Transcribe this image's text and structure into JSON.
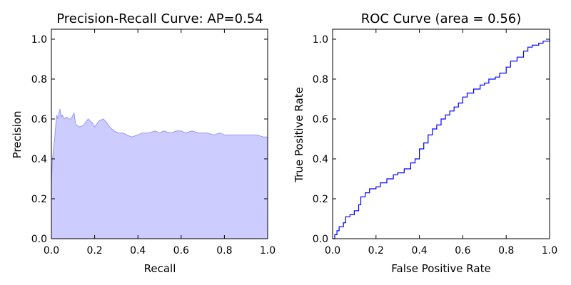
{
  "chart_data": [
    {
      "type": "area",
      "title": "Precision-Recall Curve: AP=0.54",
      "xlabel": "Recall",
      "ylabel": "Precision",
      "xlim": [
        0.0,
        1.0
      ],
      "ylim": [
        0.0,
        1.05
      ],
      "xticks": [
        "0.0",
        "0.2",
        "0.4",
        "0.6",
        "0.8",
        "1.0"
      ],
      "yticks": [
        "0.0",
        "0.2",
        "0.4",
        "0.6",
        "0.8",
        "1.0"
      ],
      "grid": false,
      "fill_color": "#ccccff",
      "line_color": "#9999ee",
      "x": [
        0.0,
        0.0,
        0.005,
        0.01,
        0.015,
        0.02,
        0.025,
        0.03,
        0.035,
        0.04,
        0.045,
        0.05,
        0.06,
        0.07,
        0.08,
        0.09,
        0.1,
        0.105,
        0.11,
        0.115,
        0.13,
        0.15,
        0.17,
        0.19,
        0.2,
        0.22,
        0.24,
        0.25,
        0.27,
        0.29,
        0.31,
        0.33,
        0.35,
        0.37,
        0.4,
        0.42,
        0.45,
        0.48,
        0.5,
        0.52,
        0.55,
        0.58,
        0.6,
        0.62,
        0.65,
        0.68,
        0.7,
        0.72,
        0.75,
        0.78,
        0.8,
        0.82,
        0.85,
        0.88,
        0.9,
        0.92,
        0.95,
        0.98,
        1.0
      ],
      "y": [
        1.0,
        0.27,
        0.4,
        0.45,
        0.5,
        0.57,
        0.62,
        0.6,
        0.63,
        0.65,
        0.61,
        0.62,
        0.6,
        0.61,
        0.6,
        0.6,
        0.62,
        0.63,
        0.59,
        0.57,
        0.56,
        0.57,
        0.6,
        0.58,
        0.56,
        0.59,
        0.6,
        0.59,
        0.56,
        0.54,
        0.53,
        0.53,
        0.52,
        0.51,
        0.52,
        0.53,
        0.53,
        0.54,
        0.53,
        0.54,
        0.53,
        0.54,
        0.54,
        0.53,
        0.54,
        0.53,
        0.53,
        0.53,
        0.52,
        0.53,
        0.52,
        0.52,
        0.52,
        0.52,
        0.52,
        0.52,
        0.52,
        0.51,
        0.51
      ]
    },
    {
      "type": "line",
      "title": "ROC Curve (area = 0.56)",
      "xlabel": "False Positive Rate",
      "ylabel": "True Positive Rate",
      "xlim": [
        0.0,
        1.0
      ],
      "ylim": [
        0.0,
        1.05
      ],
      "xticks": [
        "0.0",
        "0.2",
        "0.4",
        "0.6",
        "0.8",
        "1.0"
      ],
      "yticks": [
        "0.0",
        "0.2",
        "0.4",
        "0.6",
        "0.8",
        "1.0"
      ],
      "grid": false,
      "line_color": "#0000ff",
      "x": [
        0.0,
        0.01,
        0.02,
        0.03,
        0.05,
        0.06,
        0.08,
        0.1,
        0.12,
        0.13,
        0.15,
        0.17,
        0.2,
        0.22,
        0.25,
        0.28,
        0.3,
        0.33,
        0.36,
        0.38,
        0.4,
        0.42,
        0.44,
        0.46,
        0.48,
        0.5,
        0.52,
        0.54,
        0.56,
        0.58,
        0.6,
        0.62,
        0.65,
        0.68,
        0.7,
        0.72,
        0.75,
        0.77,
        0.8,
        0.82,
        0.85,
        0.88,
        0.9,
        0.92,
        0.95,
        0.97,
        1.0
      ],
      "y": [
        0.0,
        0.02,
        0.04,
        0.06,
        0.08,
        0.11,
        0.12,
        0.14,
        0.17,
        0.21,
        0.23,
        0.25,
        0.26,
        0.28,
        0.3,
        0.32,
        0.33,
        0.35,
        0.38,
        0.4,
        0.45,
        0.48,
        0.52,
        0.55,
        0.57,
        0.6,
        0.62,
        0.64,
        0.66,
        0.68,
        0.71,
        0.73,
        0.75,
        0.77,
        0.78,
        0.8,
        0.81,
        0.83,
        0.86,
        0.89,
        0.91,
        0.94,
        0.96,
        0.97,
        0.98,
        0.99,
        1.0
      ]
    }
  ]
}
